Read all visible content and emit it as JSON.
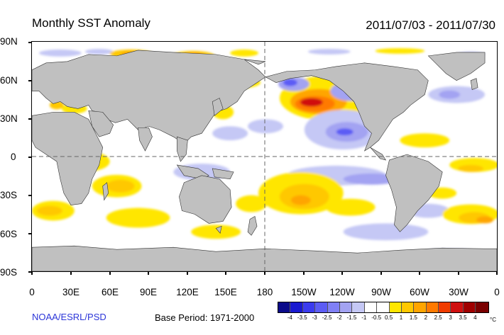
{
  "title": "Monthly SST Anomaly",
  "date_range": "2011/07/03 - 2011/07/30",
  "lat_labels": [
    "90N",
    "60N",
    "30N",
    "0",
    "30S",
    "60S",
    "90S"
  ],
  "lon_labels": [
    "0",
    "30E",
    "60E",
    "90E",
    "120E",
    "150E",
    "180",
    "150W",
    "120W",
    "90W",
    "60W",
    "30W",
    "0"
  ],
  "credit": "NOAA/ESRL/PSD",
  "base_period": "Base Period: 1971-2000",
  "colorbar": {
    "labels": [
      "-4",
      "-3.5",
      "-3",
      "-2.5",
      "-2",
      "-1.5",
      "-1",
      "-0.5",
      "0.5",
      "1",
      "1.5",
      "2",
      "2.5",
      "3",
      "3.5",
      "4"
    ],
    "unit": "°C",
    "colors": [
      "#0b0b8a",
      "#1a1ad0",
      "#3b3bef",
      "#5c5cf5",
      "#8080f5",
      "#a3a3f2",
      "#c5c8f5",
      "#ffffff",
      "#ffffff",
      "#ffe600",
      "#ffc800",
      "#ffa500",
      "#ff7a00",
      "#f03c00",
      "#d01010",
      "#a00000",
      "#7a0000"
    ]
  },
  "colors": {
    "land": "#c0c0c0",
    "ocean_neutral": "#ffffff",
    "credit_text": "#2b35d8"
  }
}
